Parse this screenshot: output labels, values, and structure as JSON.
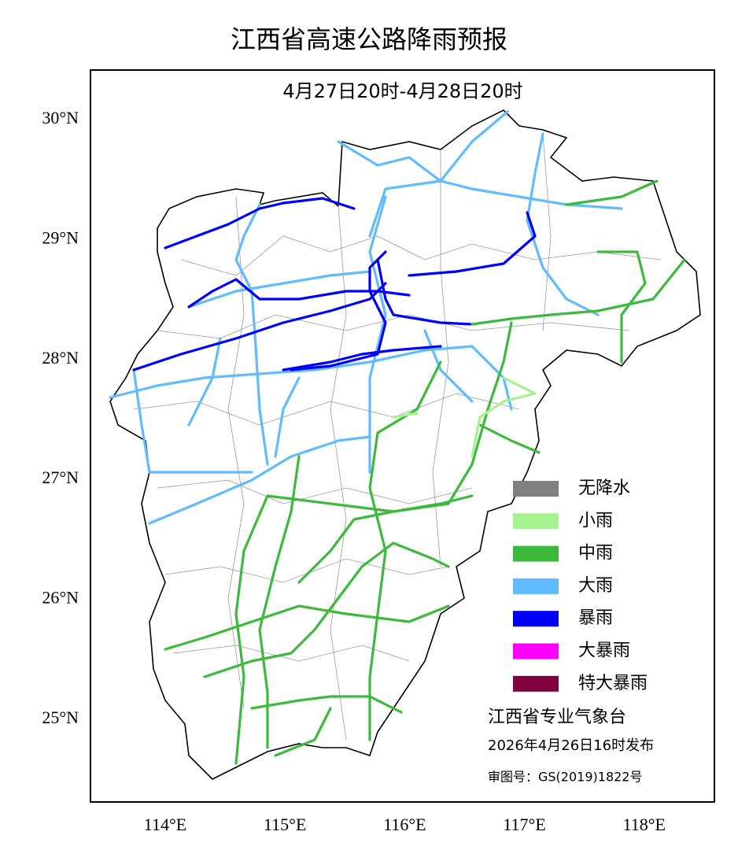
{
  "map": {
    "title": "江西省高速公路降雨预报",
    "subtitle": "4月27日20时-4月28日20时",
    "lat_ticks": [
      {
        "value": 30,
        "label": "30°N"
      },
      {
        "value": 29,
        "label": "29°N"
      },
      {
        "value": 28,
        "label": "28°N"
      },
      {
        "value": 27,
        "label": "27°N"
      },
      {
        "value": 26,
        "label": "26°N"
      },
      {
        "value": 25,
        "label": "25°N"
      }
    ],
    "lon_ticks": [
      {
        "value": 114,
        "label": "114°E"
      },
      {
        "value": 115,
        "label": "115°E"
      },
      {
        "value": 116,
        "label": "116°E"
      },
      {
        "value": 117,
        "label": "117°E"
      },
      {
        "value": 118,
        "label": "118°E"
      }
    ],
    "legend": [
      {
        "label": "无降水",
        "color": "#808080"
      },
      {
        "label": "小雨",
        "color": "#a6f28f"
      },
      {
        "label": "中雨",
        "color": "#3dba3d"
      },
      {
        "label": "大雨",
        "color": "#61bbff"
      },
      {
        "label": "暴雨",
        "color": "#0000fe"
      },
      {
        "label": "大暴雨",
        "color": "#fe00fe"
      },
      {
        "label": "特大暴雨",
        "color": "#810040"
      }
    ],
    "issuer": "江西省专业气象台",
    "issued": "2026年4月26日16时发布",
    "approval": "审图号：GS(2019)1822号"
  }
}
